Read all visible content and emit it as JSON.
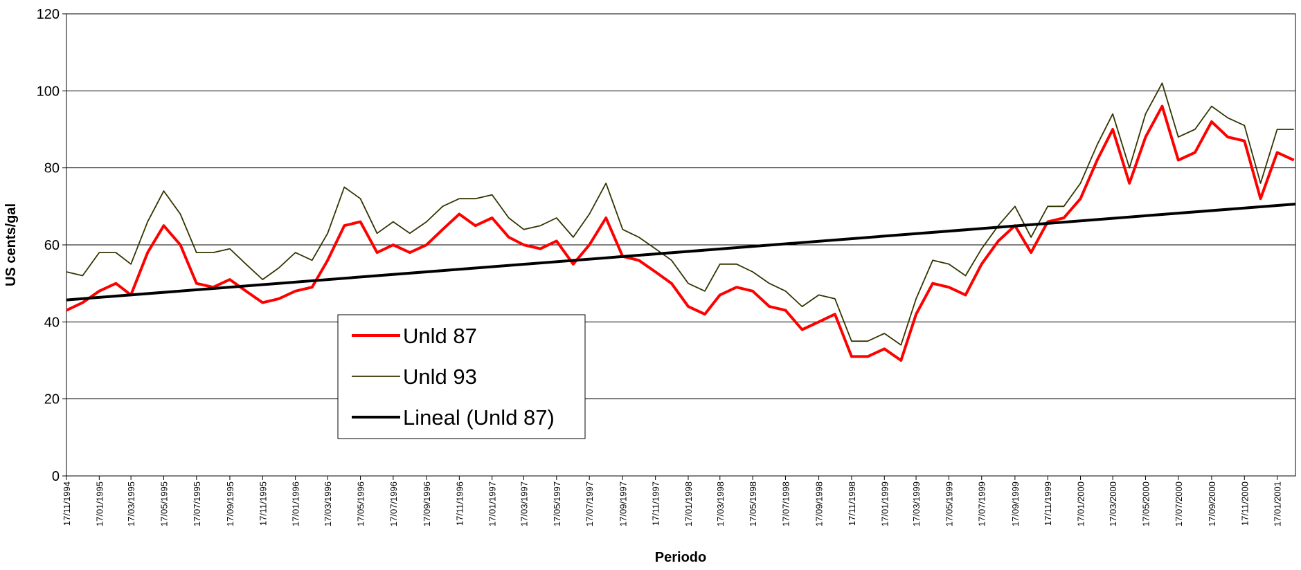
{
  "chart_data": {
    "type": "line",
    "y_label": "US cents/gal",
    "x_label": "Periodo",
    "ylim": [
      0,
      120
    ],
    "yticks": [
      0,
      20,
      40,
      60,
      80,
      100,
      120
    ],
    "xlim": [
      "17/11/1994",
      "20/02/2001"
    ],
    "xticks": [
      "17/11/1994",
      "17/01/1995",
      "17/03/1995",
      "17/05/1995",
      "17/07/1995",
      "17/09/1995",
      "17/11/1995",
      "17/01/1996",
      "17/03/1996",
      "17/05/1996",
      "17/07/1996",
      "17/09/1996",
      "17/11/1996",
      "17/01/1997",
      "17/03/1997",
      "17/05/1997",
      "17/07/1997",
      "17/09/1997",
      "17/11/1997",
      "17/01/1998",
      "17/03/1998",
      "17/05/1998",
      "17/07/1998",
      "17/09/1998",
      "17/11/1998",
      "17/01/1999",
      "17/03/1999",
      "17/05/1999",
      "17/07/1999",
      "17/09/1999",
      "17/11/1999",
      "17/01/2000",
      "17/03/2000",
      "17/05/2000",
      "17/07/2000",
      "17/09/2000",
      "17/11/2000",
      "17/01/2001"
    ],
    "grid": true,
    "legend": "lower-left",
    "x": [
      "17/11/1994",
      "17/12/1994",
      "17/01/1995",
      "17/02/1995",
      "17/03/1995",
      "17/04/1995",
      "17/05/1995",
      "17/06/1995",
      "17/07/1995",
      "17/08/1995",
      "17/09/1995",
      "17/10/1995",
      "17/11/1995",
      "17/12/1995",
      "17/01/1996",
      "17/02/1996",
      "17/03/1996",
      "17/04/1996",
      "17/05/1996",
      "17/06/1996",
      "17/07/1996",
      "17/08/1996",
      "17/09/1996",
      "17/10/1996",
      "17/11/1996",
      "17/12/1996",
      "17/01/1997",
      "17/02/1997",
      "17/03/1997",
      "17/04/1997",
      "17/05/1997",
      "17/06/1997",
      "17/07/1997",
      "17/08/1997",
      "17/09/1997",
      "17/10/1997",
      "17/11/1997",
      "17/12/1997",
      "17/01/1998",
      "17/02/1998",
      "17/03/1998",
      "17/04/1998",
      "17/05/1998",
      "17/06/1998",
      "17/07/1998",
      "17/08/1998",
      "17/09/1998",
      "17/10/1998",
      "17/11/1998",
      "17/12/1998",
      "17/01/1999",
      "17/02/1999",
      "17/03/1999",
      "17/04/1999",
      "17/05/1999",
      "17/06/1999",
      "17/07/1999",
      "17/08/1999",
      "17/09/1999",
      "17/10/1999",
      "17/11/1999",
      "17/12/1999",
      "17/01/2000",
      "17/02/2000",
      "17/03/2000",
      "17/04/2000",
      "17/05/2000",
      "17/06/2000",
      "17/07/2000",
      "17/08/2000",
      "17/09/2000",
      "17/10/2000",
      "17/11/2000",
      "17/12/2000",
      "17/01/2001",
      "17/02/2001"
    ],
    "series": [
      {
        "name": "Unld 87",
        "color": "#ff0000",
        "width": 4,
        "values": [
          43,
          45,
          48,
          50,
          47,
          58,
          65,
          60,
          50,
          49,
          51,
          48,
          45,
          46,
          48,
          49,
          56,
          65,
          66,
          58,
          60,
          58,
          60,
          64,
          68,
          65,
          67,
          62,
          60,
          59,
          61,
          55,
          60,
          67,
          57,
          56,
          53,
          50,
          44,
          42,
          47,
          49,
          48,
          44,
          43,
          38,
          40,
          42,
          31,
          31,
          33,
          30,
          42,
          50,
          49,
          47,
          55,
          61,
          65,
          58,
          66,
          67,
          72,
          82,
          90,
          76,
          88,
          96,
          82,
          84,
          92,
          88,
          87,
          72,
          84,
          82
        ]
      },
      {
        "name": "Unld 93",
        "color": "#333300",
        "width": 1.8,
        "values": [
          53,
          52,
          58,
          58,
          55,
          66,
          74,
          68,
          58,
          58,
          59,
          55,
          51,
          54,
          58,
          56,
          63,
          75,
          72,
          63,
          66,
          63,
          66,
          70,
          72,
          72,
          73,
          67,
          64,
          65,
          67,
          62,
          68,
          76,
          64,
          62,
          59,
          56,
          50,
          48,
          55,
          55,
          53,
          50,
          48,
          44,
          47,
          46,
          35,
          35,
          37,
          34,
          46,
          56,
          55,
          52,
          59,
          65,
          70,
          62,
          70,
          70,
          76,
          86,
          94,
          80,
          94,
          102,
          88,
          90,
          96,
          93,
          91,
          76,
          90,
          90
        ]
      },
      {
        "name": "Lineal (Unld 87)",
        "color": "#000000",
        "width": 4,
        "x": [
          "17/11/1994",
          "20/02/2001"
        ],
        "values": [
          45.7,
          70.6
        ]
      }
    ]
  }
}
